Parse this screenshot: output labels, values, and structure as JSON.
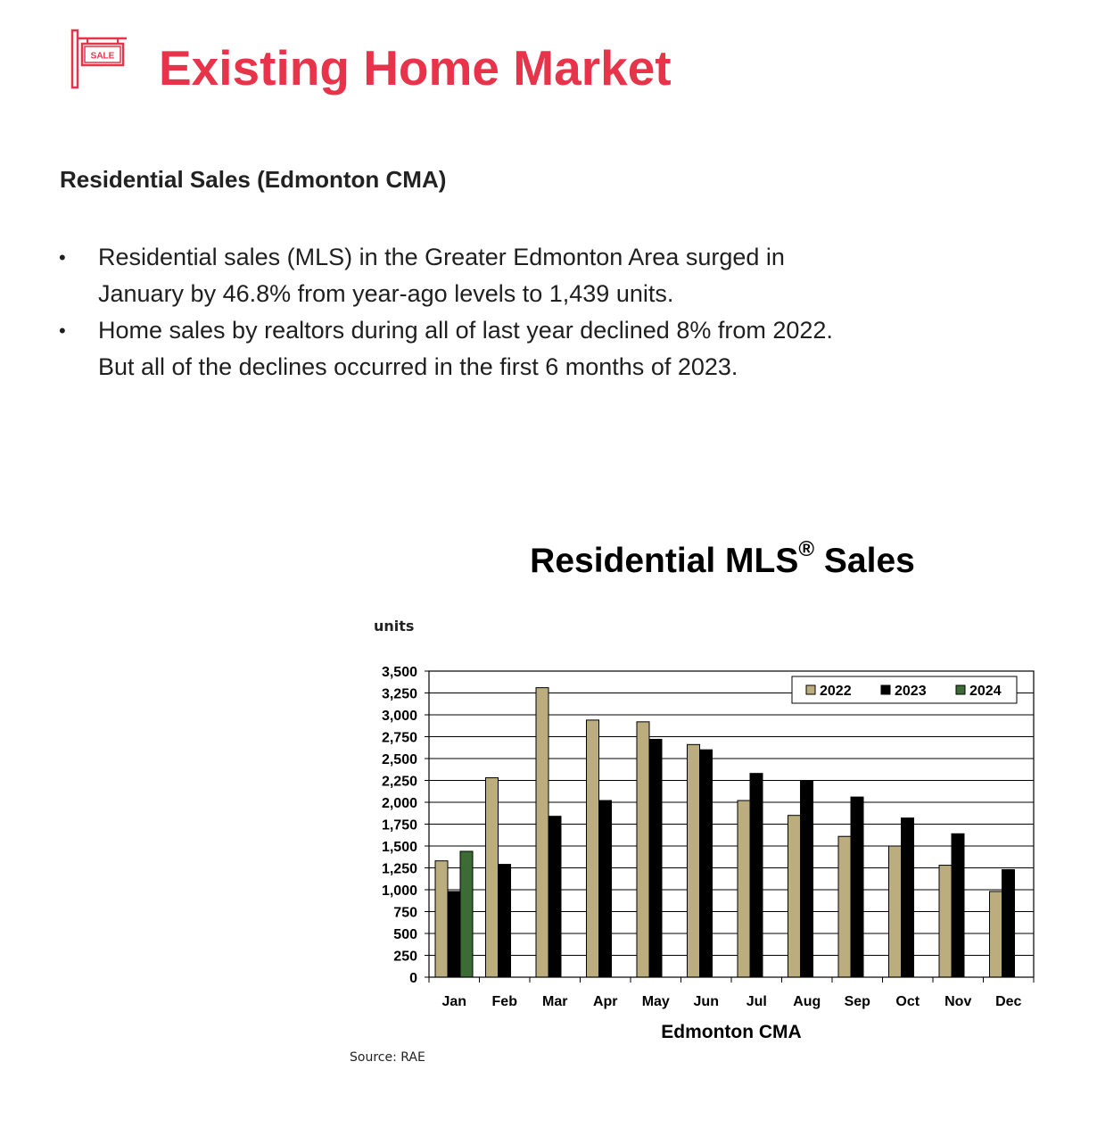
{
  "page": {
    "title": "Existing Home Market",
    "sale_sign_text": "SALE",
    "section_heading": "Residential Sales (Edmonton CMA)",
    "bullet_symbol": "•",
    "bullets": [
      {
        "line1": "Residential sales (MLS) in the Greater Edmonton Area surged in",
        "line2": "January by 46.8% from year-ago levels to 1,439 units."
      },
      {
        "line1": "Home sales by realtors during all of last year declined 8% from 2022.",
        "line2": "But all of the declines occurred in the first 6 months of 2023."
      }
    ],
    "units_label": "units",
    "source": "Source: RAE",
    "accent_color": "#e8344a",
    "sign_icon": "for-sale-sign-icon"
  },
  "chart_data": {
    "type": "bar",
    "title": "Residential MLS",
    "title_mark": "®",
    "title_suffix": " Sales",
    "xlabel": "Edmonton CMA",
    "ylabel": "units",
    "categories": [
      "Jan",
      "Feb",
      "Mar",
      "Apr",
      "May",
      "Jun",
      "Jul",
      "Aug",
      "Sep",
      "Oct",
      "Nov",
      "Dec"
    ],
    "ylim": [
      0,
      3500
    ],
    "yticks": [
      0,
      250,
      500,
      750,
      1000,
      1250,
      1500,
      1750,
      2000,
      2250,
      2500,
      2750,
      3000,
      3250,
      3500
    ],
    "ytick_labels": [
      "0",
      "250",
      "500",
      "750",
      "1,000",
      "1,250",
      "1,500",
      "1,750",
      "2,000",
      "2,250",
      "2,500",
      "2,750",
      "3,000",
      "3,250",
      "3,500"
    ],
    "grid": true,
    "legend_position": "top-right",
    "series": [
      {
        "name": "2022",
        "color": "#bcad7e",
        "values": [
          1330,
          2280,
          3310,
          2940,
          2920,
          2660,
          2020,
          1850,
          1610,
          1500,
          1280,
          980
        ]
      },
      {
        "name": "2023",
        "color": "#000000",
        "values": [
          980,
          1290,
          1840,
          2020,
          2720,
          2600,
          2330,
          2250,
          2060,
          1820,
          1640,
          1230
        ]
      },
      {
        "name": "2024",
        "color": "#3d6b35",
        "values": [
          1439,
          null,
          null,
          null,
          null,
          null,
          null,
          null,
          null,
          null,
          null,
          null
        ]
      }
    ]
  }
}
